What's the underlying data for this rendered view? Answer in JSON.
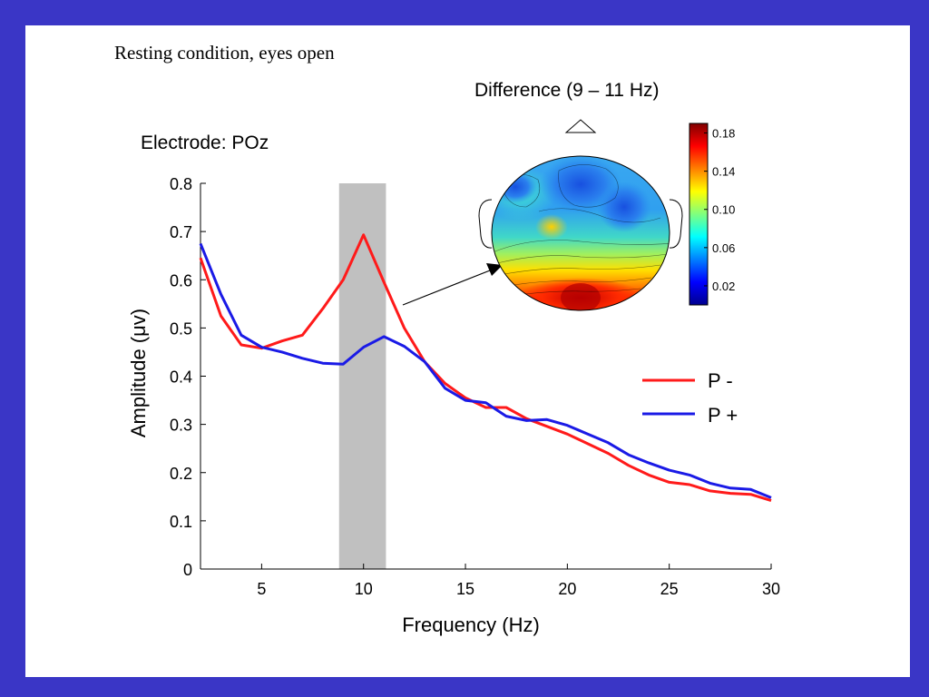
{
  "slide": {
    "title": "Resting condition, eyes open",
    "border_color": "#3a36c6",
    "background_color": "#ffffff"
  },
  "chart_data": [
    {
      "type": "line",
      "title": "Electrode: POz",
      "xlabel": "Frequency (Hz)",
      "ylabel": "Amplitude (μv)",
      "xlim": [
        2,
        30
      ],
      "ylim": [
        0,
        0.8
      ],
      "xticks": [
        5,
        10,
        15,
        20,
        25,
        30
      ],
      "xtick_labels": [
        "5",
        "10",
        "15",
        "20",
        "25",
        "30"
      ],
      "yticks": [
        0,
        0.1,
        0.2,
        0.3,
        0.4,
        0.5,
        0.6,
        0.7,
        0.8
      ],
      "ytick_labels": [
        "0",
        "0.1",
        "0.2",
        "0.3",
        "0.4",
        "0.5",
        "0.6",
        "0.7",
        "0.8"
      ],
      "grid": false,
      "legend_position": "right",
      "highlight_band": {
        "x_range": [
          8.8,
          11.1
        ],
        "color": "#c0c0c0"
      },
      "series": [
        {
          "name": "P -",
          "color": "#ff1a1a",
          "x": [
            2,
            3,
            4,
            5,
            6,
            7,
            8,
            9,
            10,
            11,
            12,
            13,
            14,
            15,
            16,
            17,
            18,
            19,
            20,
            21,
            22,
            23,
            24,
            25,
            26,
            27,
            28,
            29,
            30
          ],
          "y": [
            0.645,
            0.525,
            0.465,
            0.458,
            0.473,
            0.485,
            0.54,
            0.6,
            0.693,
            0.595,
            0.5,
            0.43,
            0.385,
            0.355,
            0.335,
            0.335,
            0.312,
            0.296,
            0.28,
            0.26,
            0.24,
            0.215,
            0.195,
            0.18,
            0.175,
            0.162,
            0.157,
            0.155,
            0.142
          ]
        },
        {
          "name": "P +",
          "color": "#1a1ae6",
          "x": [
            2,
            3,
            4,
            5,
            6,
            7,
            8,
            9,
            10,
            11,
            12,
            13,
            14,
            15,
            16,
            17,
            18,
            19,
            20,
            21,
            22,
            23,
            24,
            25,
            26,
            27,
            28,
            29,
            30
          ],
          "y": [
            0.675,
            0.57,
            0.485,
            0.46,
            0.45,
            0.437,
            0.427,
            0.425,
            0.46,
            0.482,
            0.462,
            0.43,
            0.375,
            0.35,
            0.345,
            0.317,
            0.308,
            0.31,
            0.298,
            0.28,
            0.262,
            0.237,
            0.22,
            0.205,
            0.195,
            0.178,
            0.168,
            0.165,
            0.148
          ]
        }
      ]
    },
    {
      "type": "heatmap",
      "title": "Difference (9 – 11 Hz)",
      "colorbar_range": [
        0.0,
        0.19
      ],
      "colorbar_ticks": [
        0.02,
        0.06,
        0.1,
        0.14,
        0.18
      ],
      "colorbar_tick_labels": [
        "0.02",
        "0.06",
        "0.10",
        "0.14",
        "0.18"
      ],
      "colormap": "jet"
    }
  ]
}
